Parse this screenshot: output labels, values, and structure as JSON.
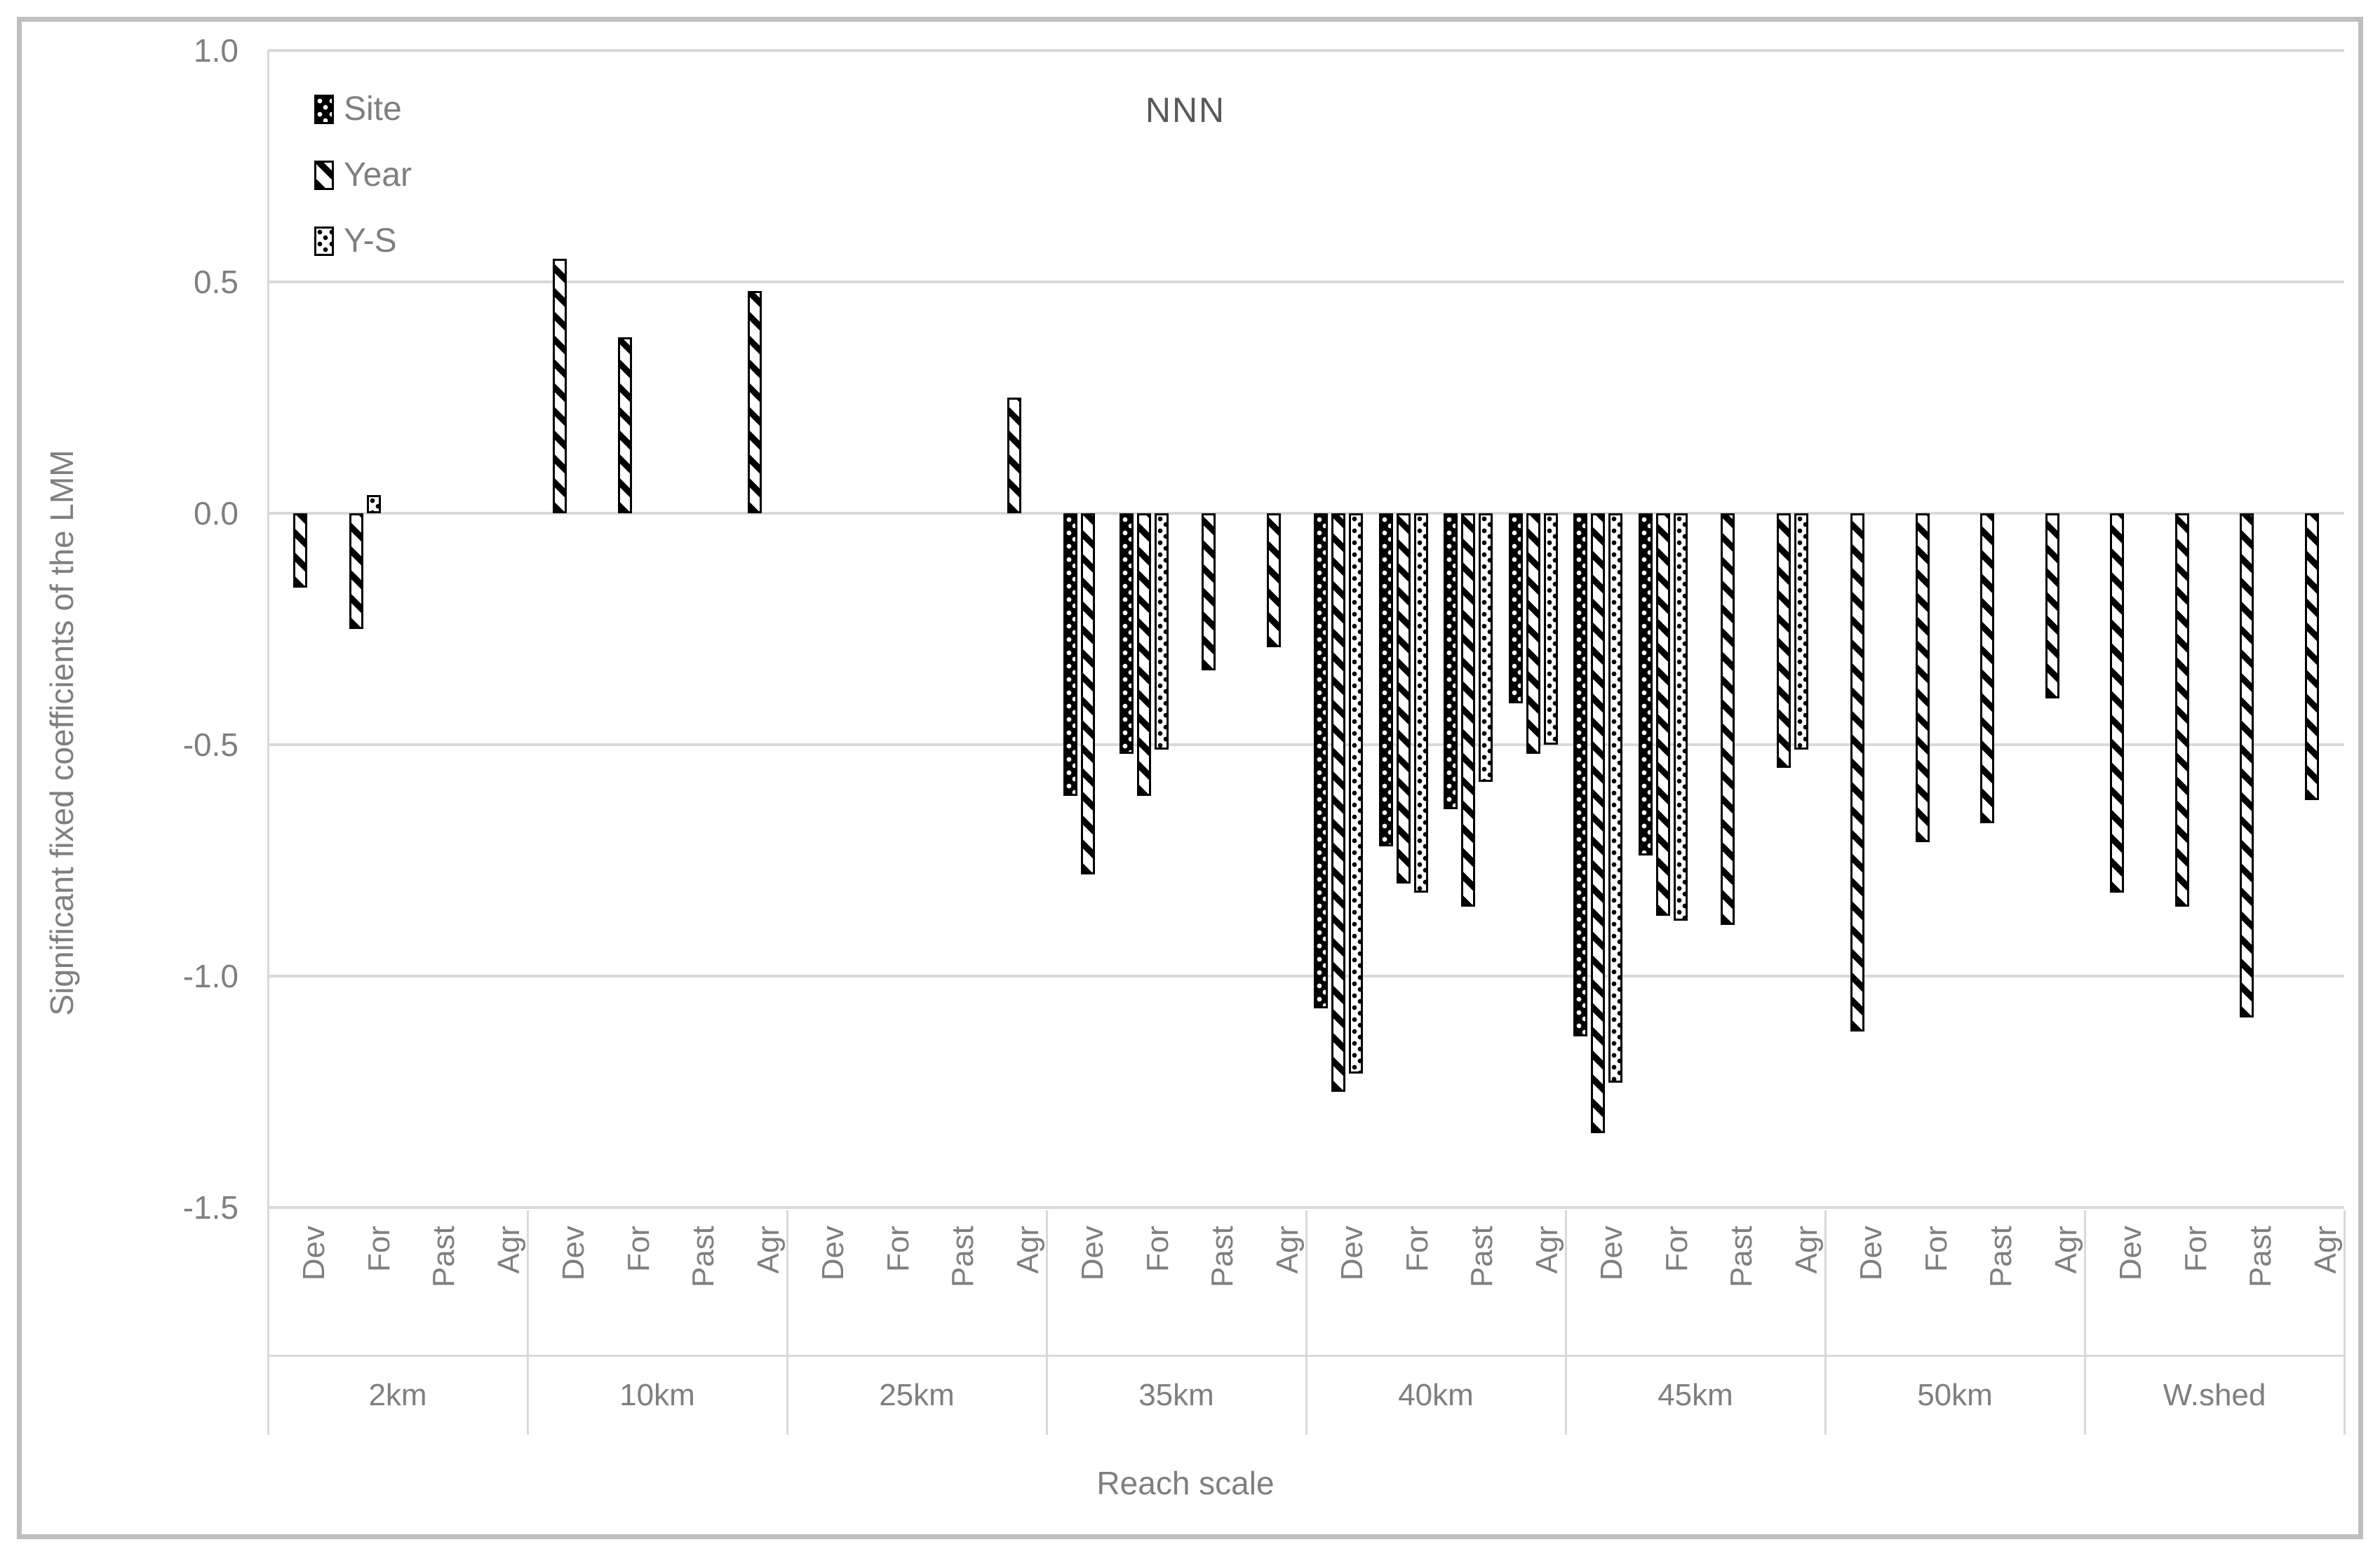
{
  "chart_data": {
    "type": "bar",
    "title": "NNN",
    "xlabel": "Reach scale",
    "ylabel": "Significant fixed coefficients of the LMM",
    "ylim": [
      -1.5,
      1.0
    ],
    "ytick_labels": [
      "1.0",
      "0.5",
      "0.0",
      "-0.5",
      "-1.0",
      "-1.5"
    ],
    "ytick_values": [
      1.0,
      0.5,
      0.0,
      -0.5,
      -1.0,
      -1.5
    ],
    "grid": true,
    "legend_position": "top-left-inside",
    "bar_patterns": {
      "Site": "black with white dots",
      "Year": "black diagonal stripes",
      "Y-S": "white with black dots"
    },
    "colors": {
      "bar_outline": "#000000",
      "gridline": "#d9d9d9",
      "axis_text": "#7f7f7f",
      "title_text": "#595959",
      "figure_border": "#bfbfbf"
    },
    "series_names": [
      "Site",
      "Year",
      "Y-S"
    ],
    "categories": [
      "Dev",
      "For",
      "Past",
      "Agr"
    ],
    "groups": [
      {
        "label": "2km",
        "values": {
          "Dev": [
            null,
            -0.16,
            null
          ],
          "For": [
            null,
            -0.25,
            0.04
          ],
          "Past": [
            null,
            null,
            null
          ],
          "Agr": [
            null,
            null,
            null
          ]
        }
      },
      {
        "label": "10km",
        "values": {
          "Dev": [
            null,
            0.55,
            null
          ],
          "For": [
            null,
            0.38,
            null
          ],
          "Past": [
            null,
            null,
            null
          ],
          "Agr": [
            null,
            0.48,
            null
          ]
        }
      },
      {
        "label": "25km",
        "values": {
          "Dev": [
            null,
            null,
            null
          ],
          "For": [
            null,
            null,
            null
          ],
          "Past": [
            null,
            null,
            null
          ],
          "Agr": [
            null,
            0.25,
            null
          ]
        }
      },
      {
        "label": "35km",
        "values": {
          "Dev": [
            -0.61,
            -0.78,
            null
          ],
          "For": [
            -0.52,
            -0.61,
            -0.51
          ],
          "Past": [
            null,
            -0.34,
            null
          ],
          "Agr": [
            null,
            -0.29,
            null
          ]
        }
      },
      {
        "label": "40km",
        "values": {
          "Dev": [
            -1.07,
            -1.25,
            -1.21
          ],
          "For": [
            -0.72,
            -0.8,
            -0.82
          ],
          "Past": [
            -0.64,
            -0.85,
            -0.58
          ],
          "Agr": [
            -0.41,
            -0.52,
            -0.5
          ]
        }
      },
      {
        "label": "45km",
        "values": {
          "Dev": [
            -1.13,
            -1.34,
            -1.23
          ],
          "For": [
            -0.74,
            -0.87,
            -0.88
          ],
          "Past": [
            null,
            -0.89,
            null
          ],
          "Agr": [
            null,
            -0.55,
            -0.51
          ]
        }
      },
      {
        "label": "50km",
        "values": {
          "Dev": [
            null,
            -1.12,
            null
          ],
          "For": [
            null,
            -0.71,
            null
          ],
          "Past": [
            null,
            -0.67,
            null
          ],
          "Agr": [
            null,
            -0.4,
            null
          ]
        }
      },
      {
        "label": "W.shed",
        "values": {
          "Dev": [
            null,
            -0.82,
            null
          ],
          "For": [
            null,
            -0.85,
            null
          ],
          "Past": [
            null,
            -1.09,
            null
          ],
          "Agr": [
            null,
            -0.62,
            null
          ]
        }
      }
    ],
    "legend": [
      {
        "id": "site",
        "label": "Site"
      },
      {
        "id": "year",
        "label": "Year"
      },
      {
        "id": "ys",
        "label": "Y-S"
      }
    ]
  }
}
